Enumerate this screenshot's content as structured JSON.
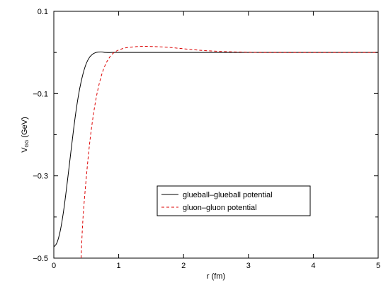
{
  "chart_data": {
    "type": "line",
    "xlabel": "r (fm)",
    "ylabel_main": "V",
    "ylabel_sub": "GG",
    "ylabel_unit": "(GeV)",
    "xlim": [
      0,
      5
    ],
    "ylim": [
      -0.5,
      0.1
    ],
    "xticks": [
      0,
      1,
      2,
      3,
      4,
      5
    ],
    "xtick_labels": [
      "0",
      "1",
      "2",
      "3",
      "4",
      "5"
    ],
    "yticks": [
      -0.5,
      -0.3,
      -0.1,
      0.1
    ],
    "ytick_labels": [
      "−0.5",
      "−0.3",
      "−0.1",
      "0.1"
    ],
    "minor_yticks": [
      -0.4,
      -0.2,
      0.0
    ],
    "grid": false,
    "legend_position": "lower-right",
    "series": [
      {
        "name": "glueball–glueball potential",
        "color": "#000000",
        "dash": "solid",
        "x": [
          0.0,
          0.05,
          0.1,
          0.15,
          0.2,
          0.25,
          0.3,
          0.35,
          0.4,
          0.45,
          0.5,
          0.55,
          0.6,
          0.65,
          0.7,
          0.75,
          0.8,
          0.9,
          1.0,
          1.5,
          2.0,
          3.0,
          4.0,
          5.0
        ],
        "y": [
          -0.473,
          -0.462,
          -0.433,
          -0.386,
          -0.325,
          -0.259,
          -0.193,
          -0.134,
          -0.087,
          -0.052,
          -0.027,
          -0.012,
          -0.004,
          0.0,
          0.001,
          0.001,
          0.0,
          0.0,
          0.0,
          0.0,
          0.0,
          0.0,
          0.0,
          0.0
        ]
      },
      {
        "name": "gluon–gluon potential",
        "color": "#dd0000",
        "dash": "dashed",
        "x": [
          0.42,
          0.45,
          0.5,
          0.55,
          0.6,
          0.65,
          0.7,
          0.75,
          0.8,
          0.85,
          0.9,
          0.95,
          1.0,
          1.1,
          1.2,
          1.3,
          1.4,
          1.5,
          1.6,
          1.8,
          2.0,
          2.2,
          2.5,
          3.0,
          3.5,
          4.0,
          5.0
        ],
        "y": [
          -0.5,
          -0.402,
          -0.305,
          -0.224,
          -0.162,
          -0.113,
          -0.076,
          -0.048,
          -0.028,
          -0.014,
          -0.004,
          0.002,
          0.006,
          0.011,
          0.013,
          0.0145,
          0.015,
          0.0145,
          0.014,
          0.012,
          0.009,
          0.006,
          0.003,
          0.0005,
          0.0,
          0.0,
          0.0
        ]
      }
    ]
  }
}
